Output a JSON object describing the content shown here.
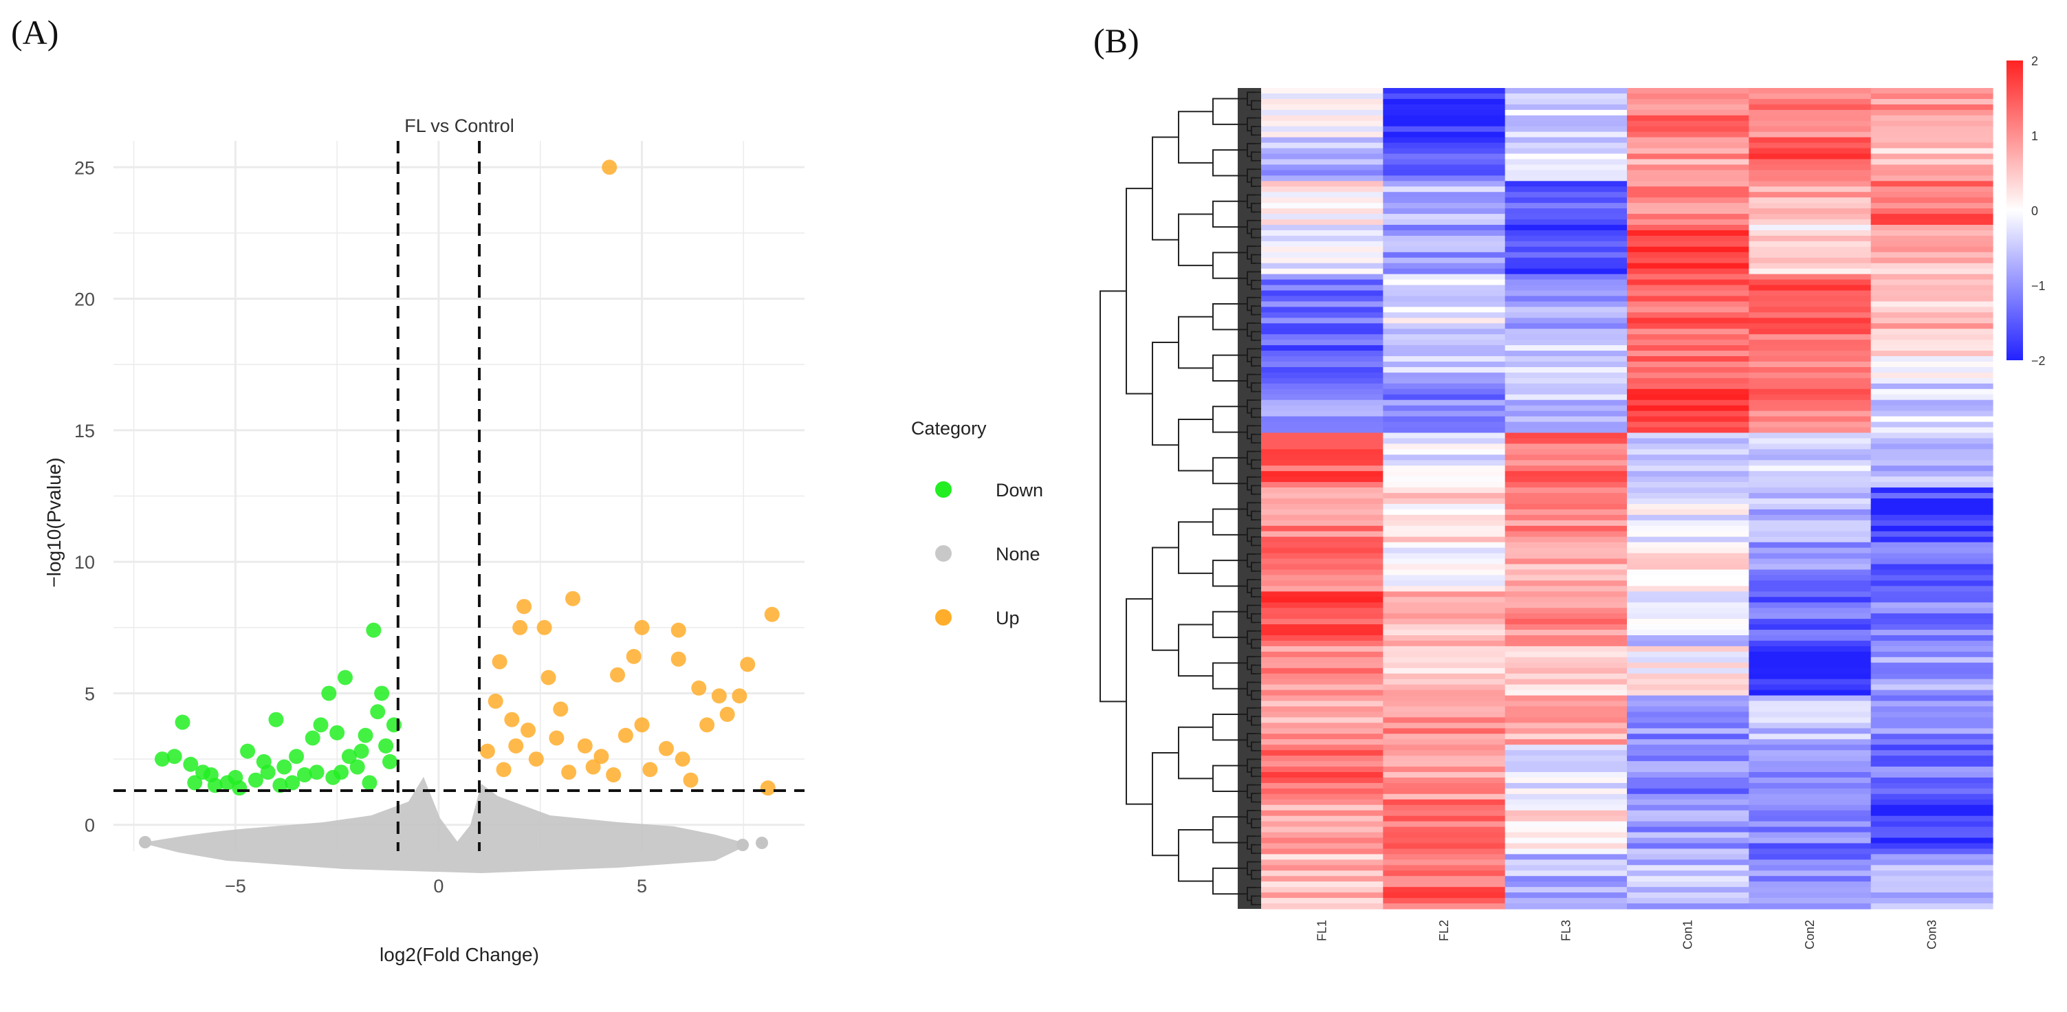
{
  "panels": {
    "a": "(A)",
    "b": "(B)"
  },
  "chart_data": [
    {
      "type": "scatter",
      "title": "FL vs Control",
      "xlabel": "log2(Fold Change)",
      "ylabel": "−log10(Pvalue)",
      "xlim": [
        -8,
        9
      ],
      "ylim": [
        -1,
        26
      ],
      "xticks": [
        -5,
        0,
        5
      ],
      "xtick_labels": [
        "−5",
        "0",
        "5"
      ],
      "yticks": [
        0,
        5,
        10,
        15,
        20,
        25
      ],
      "ytick_labels": [
        "0",
        "5",
        "10",
        "15",
        "20",
        "25"
      ],
      "grid": true,
      "thresholds": {
        "fold_change": [
          -1,
          1
        ],
        "pvalue": 1.3
      },
      "legend": {
        "title": "Category",
        "position": "right",
        "entries": [
          {
            "label": "Down",
            "color": "#22ee22"
          },
          {
            "label": "None",
            "color": "#c8c8c8"
          },
          {
            "label": "Up",
            "color": "#ffad2a"
          }
        ]
      },
      "series": [
        {
          "name": "Down",
          "color": "#22ee22",
          "points": [
            [
              -6.3,
              3.9
            ],
            [
              -6.5,
              2.6
            ],
            [
              -6.1,
              2.3
            ],
            [
              -5.8,
              2.0
            ],
            [
              -5.6,
              1.9
            ],
            [
              -5.2,
              1.6
            ],
            [
              -5.0,
              1.8
            ],
            [
              -4.7,
              2.8
            ],
            [
              -4.3,
              2.4
            ],
            [
              -4.0,
              4.0
            ],
            [
              -3.8,
              2.2
            ],
            [
              -3.5,
              2.6
            ],
            [
              -3.3,
              1.9
            ],
            [
              -3.1,
              3.3
            ],
            [
              -2.9,
              3.8
            ],
            [
              -2.7,
              5.0
            ],
            [
              -2.5,
              3.5
            ],
            [
              -2.3,
              5.6
            ],
            [
              -2.2,
              2.6
            ],
            [
              -2.0,
              2.2
            ],
            [
              -1.8,
              3.4
            ],
            [
              -1.6,
              7.4
            ],
            [
              -1.5,
              4.3
            ],
            [
              -1.4,
              5.0
            ],
            [
              -1.3,
              3.0
            ],
            [
              -1.2,
              2.4
            ],
            [
              -1.1,
              3.8
            ],
            [
              -6.8,
              2.5
            ],
            [
              -6.0,
              1.6
            ],
            [
              -5.5,
              1.5
            ],
            [
              -4.9,
              1.4
            ],
            [
              -4.5,
              1.7
            ],
            [
              -4.2,
              2.0
            ],
            [
              -3.9,
              1.5
            ],
            [
              -3.6,
              1.6
            ],
            [
              -3.0,
              2.0
            ],
            [
              -2.6,
              1.8
            ],
            [
              -2.4,
              2.0
            ],
            [
              -1.9,
              2.8
            ],
            [
              -1.7,
              1.6
            ]
          ]
        },
        {
          "name": "Up",
          "color": "#ffad2a",
          "points": [
            [
              4.2,
              25.0
            ],
            [
              3.3,
              8.6
            ],
            [
              2.1,
              8.3
            ],
            [
              2.6,
              7.5
            ],
            [
              2.0,
              7.5
            ],
            [
              5.0,
              7.5
            ],
            [
              5.9,
              7.4
            ],
            [
              8.2,
              8.0
            ],
            [
              4.8,
              6.4
            ],
            [
              5.9,
              6.3
            ],
            [
              7.6,
              6.1
            ],
            [
              1.5,
              6.2
            ],
            [
              4.4,
              5.7
            ],
            [
              2.7,
              5.6
            ],
            [
              6.4,
              5.2
            ],
            [
              6.9,
              4.9
            ],
            [
              7.4,
              4.9
            ],
            [
              5.0,
              3.8
            ],
            [
              3.0,
              4.4
            ],
            [
              2.2,
              3.6
            ],
            [
              1.9,
              3.0
            ],
            [
              1.4,
              4.7
            ],
            [
              1.2,
              2.8
            ],
            [
              3.6,
              3.0
            ],
            [
              4.0,
              2.6
            ],
            [
              4.6,
              3.4
            ],
            [
              5.6,
              2.9
            ],
            [
              6.0,
              2.5
            ],
            [
              6.6,
              3.8
            ],
            [
              7.1,
              4.2
            ],
            [
              1.6,
              2.1
            ],
            [
              2.4,
              2.5
            ],
            [
              3.2,
              2.0
            ],
            [
              4.3,
              1.9
            ],
            [
              5.2,
              2.1
            ],
            [
              6.2,
              1.7
            ],
            [
              8.1,
              1.4
            ],
            [
              1.8,
              4.0
            ],
            [
              2.9,
              3.3
            ],
            [
              3.8,
              2.2
            ]
          ]
        },
        {
          "name": "None",
          "color": "#c8c8c8",
          "points": []
        }
      ]
    },
    {
      "type": "heatmap",
      "columns": [
        "FL1",
        "FL2",
        "FL3",
        "Con1",
        "Con2",
        "Con3"
      ],
      "color_scale": {
        "min": -2,
        "max": 2,
        "low": "#2222ff",
        "mid": "#ffffff",
        "high": "#ff2222"
      },
      "colorbar_ticks": [
        2,
        1,
        0,
        -1,
        -2
      ],
      "colorbar_tick_labels": [
        "2",
        "1",
        "0",
        "−1",
        "−2"
      ],
      "row_blocks": [
        {
          "rows": 9,
          "values": [
            0.1,
            -1.9,
            -0.4,
            1.2,
            1.1,
            0.9
          ]
        },
        {
          "rows": 8,
          "values": [
            -0.7,
            -1.5,
            -0.3,
            0.9,
            1.5,
            0.5
          ]
        },
        {
          "rows": 8,
          "values": [
            0.2,
            -0.6,
            -1.4,
            1.1,
            0.8,
            1.4
          ]
        },
        {
          "rows": 9,
          "values": [
            -0.1,
            -0.9,
            -1.7,
            1.6,
            0.3,
            0.7
          ]
        },
        {
          "rows": 10,
          "values": [
            -1.3,
            -0.2,
            -0.8,
            1.4,
            1.5,
            0.6
          ]
        },
        {
          "rows": 10,
          "values": [
            -1.5,
            -0.6,
            -0.4,
            1.3,
            1.3,
            0.2
          ]
        },
        {
          "rows": 9,
          "values": [
            -0.8,
            -1.1,
            -0.5,
            1.8,
            1.2,
            -0.4
          ]
        },
        {
          "rows": 10,
          "values": [
            1.5,
            -0.2,
            1.3,
            -0.5,
            -0.3,
            -0.6
          ]
        },
        {
          "rows": 10,
          "values": [
            1.1,
            0.3,
            1.1,
            -0.2,
            -0.6,
            -1.7
          ]
        },
        {
          "rows": 9,
          "values": [
            1.2,
            0.1,
            0.8,
            0.3,
            -1.1,
            -1.4
          ]
        },
        {
          "rows": 10,
          "values": [
            1.6,
            0.6,
            1.0,
            -0.4,
            -1.4,
            -1.1
          ]
        },
        {
          "rows": 9,
          "values": [
            1.0,
            0.5,
            0.4,
            0.1,
            -1.9,
            -0.9
          ]
        },
        {
          "rows": 9,
          "values": [
            0.8,
            1.0,
            0.7,
            -1.0,
            -0.5,
            -1.0
          ]
        },
        {
          "rows": 10,
          "values": [
            1.4,
            0.9,
            -0.3,
            -1.1,
            -0.9,
            -1.3
          ]
        },
        {
          "rows": 10,
          "values": [
            0.9,
            1.2,
            0.2,
            -0.9,
            -1.2,
            -1.8
          ]
        },
        {
          "rows": 10,
          "values": [
            0.6,
            1.4,
            -0.7,
            -0.6,
            -1.1,
            -0.7
          ]
        }
      ]
    }
  ]
}
